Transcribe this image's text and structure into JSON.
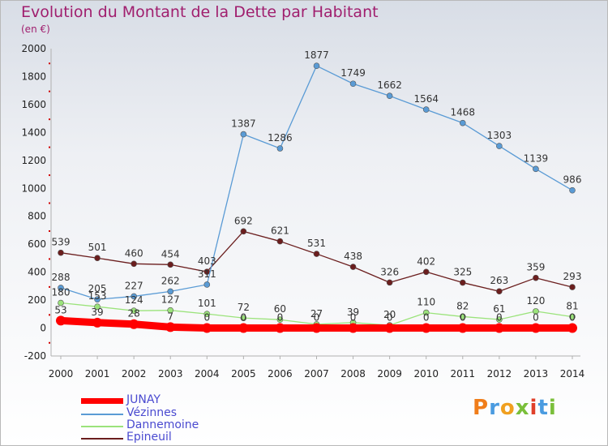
{
  "title": "Evolution du Montant de la Dette par Habitant",
  "subtitle": "(en €)",
  "logo_text": "Proxiti",
  "chart_data": {
    "type": "line",
    "x": [
      2000,
      2001,
      2002,
      2003,
      2004,
      2005,
      2006,
      2007,
      2008,
      2009,
      2010,
      2011,
      2012,
      2013,
      2014
    ],
    "ylim": [
      -200,
      2000
    ],
    "yticks": [
      -200,
      0,
      200,
      400,
      600,
      800,
      1000,
      1200,
      1400,
      1600,
      1800,
      2000
    ],
    "grid": false,
    "legend_position": "bottom-left",
    "series": [
      {
        "name": "JUNAY",
        "color": "#ff0000",
        "values": [
          53,
          39,
          28,
          7,
          0,
          0,
          0,
          0,
          0,
          0,
          0,
          0,
          0,
          0,
          0
        ],
        "labels": [
          "53",
          "39",
          "28",
          "7",
          "0",
          "0",
          "0",
          "0",
          "0",
          "0",
          "0",
          "0",
          "0",
          "0",
          "0"
        ]
      },
      {
        "name": "Vézinnes",
        "color": "#5a9bd5",
        "values": [
          288,
          205,
          227,
          262,
          311,
          1387,
          1286,
          1877,
          1749,
          1662,
          1564,
          1468,
          1303,
          1139,
          986
        ],
        "labels": [
          "288",
          "205",
          "227",
          "262",
          "311",
          "1387",
          "1286",
          "1877",
          "1749",
          "1662",
          "1564",
          "1468",
          "1303",
          "1139",
          "986"
        ]
      },
      {
        "name": "Dannemoine",
        "color": "#9be37b",
        "values": [
          180,
          153,
          124,
          127,
          101,
          72,
          60,
          27,
          39,
          20,
          110,
          82,
          61,
          120,
          81
        ],
        "labels": [
          "180",
          "153",
          "124",
          "127",
          "101",
          "72",
          "60",
          "27",
          "39",
          "20",
          "110",
          "82",
          "61",
          "120",
          "81"
        ]
      },
      {
        "name": "Epineuil",
        "color": "#6b1e1e",
        "values": [
          539,
          501,
          460,
          454,
          403,
          692,
          621,
          531,
          438,
          326,
          402,
          325,
          263,
          359,
          293
        ],
        "labels": [
          "539",
          "501",
          "460",
          "454",
          "403",
          "692",
          "621",
          "531",
          "438",
          "326",
          "402",
          "325",
          "263",
          "359",
          "293"
        ]
      }
    ]
  }
}
